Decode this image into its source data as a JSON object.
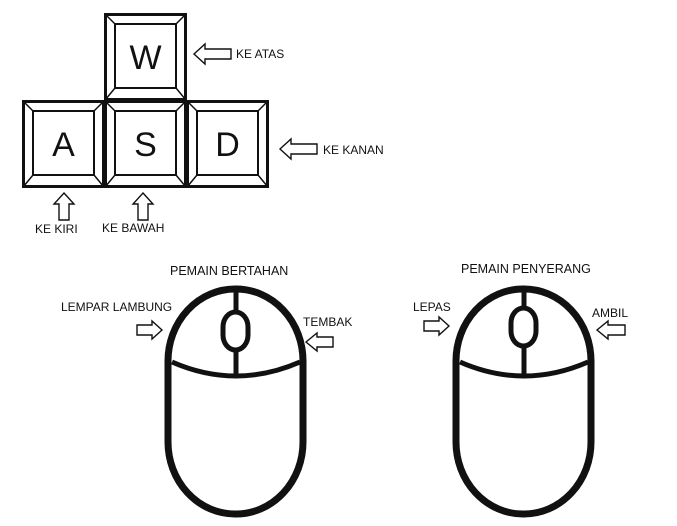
{
  "keyboard": {
    "keys": [
      {
        "letter": "W",
        "label": "KE ATAS"
      },
      {
        "letter": "A",
        "label": "KE KIRI"
      },
      {
        "letter": "S",
        "label": "KE  BAWAH"
      },
      {
        "letter": "D",
        "label": "KE KANAN"
      }
    ]
  },
  "mice": [
    {
      "title": "PEMAIN BERTAHAN",
      "left_button_label": "LEMPAR LAMBUNG",
      "right_button_label": "TEMBAK"
    },
    {
      "title": "PEMAIN PENYERANG",
      "left_button_label": "LEPAS",
      "right_button_label": "AMBIL"
    }
  ],
  "colors": {
    "ink": "#111111",
    "background": "#ffffff"
  },
  "icons": {
    "arrow": "outline-arrow-icon",
    "mouse": "computer-mouse-icon"
  }
}
